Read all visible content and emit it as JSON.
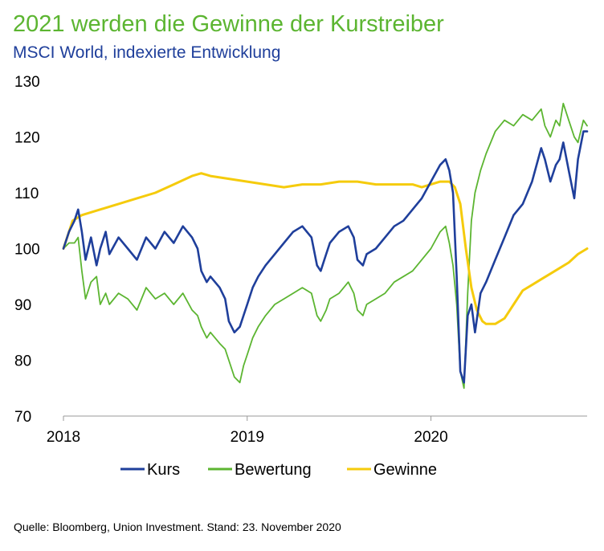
{
  "chart_data": {
    "type": "line",
    "title": "2021 werden die Gewinne der Kurstreiber",
    "subtitle": "MSCI World, indexierte Entwicklung",
    "xlim": [
      2018.0,
      2020.85
    ],
    "ylim": [
      70,
      130
    ],
    "y_ticks": [
      "70",
      "80",
      "90",
      "100",
      "110",
      "120",
      "130"
    ],
    "x_ticks": [
      {
        "x": 2018,
        "label": "2018"
      },
      {
        "x": 2019,
        "label": "2019"
      },
      {
        "x": 2020,
        "label": "2020"
      }
    ],
    "grid": false,
    "legend_position": "bottom",
    "series": [
      {
        "name": "Kurs",
        "color": "#1f3f9b",
        "x": [
          2018.0,
          2018.03,
          2018.06,
          2018.08,
          2018.1,
          2018.12,
          2018.15,
          2018.18,
          2018.2,
          2018.23,
          2018.25,
          2018.3,
          2018.35,
          2018.4,
          2018.45,
          2018.5,
          2018.55,
          2018.6,
          2018.65,
          2018.7,
          2018.73,
          2018.75,
          2018.78,
          2018.8,
          2018.85,
          2018.88,
          2018.9,
          2018.93,
          2018.96,
          2018.98,
          2019.0,
          2019.03,
          2019.06,
          2019.1,
          2019.15,
          2019.2,
          2019.25,
          2019.3,
          2019.35,
          2019.38,
          2019.4,
          2019.43,
          2019.45,
          2019.5,
          2019.55,
          2019.58,
          2019.6,
          2019.63,
          2019.65,
          2019.7,
          2019.75,
          2019.8,
          2019.85,
          2019.9,
          2019.95,
          2020.0,
          2020.05,
          2020.08,
          2020.1,
          2020.12,
          2020.14,
          2020.16,
          2020.18,
          2020.2,
          2020.22,
          2020.24,
          2020.27,
          2020.3,
          2020.35,
          2020.4,
          2020.45,
          2020.5,
          2020.55,
          2020.6,
          2020.62,
          2020.65,
          2020.68,
          2020.7,
          2020.72,
          2020.75,
          2020.78,
          2020.8,
          2020.83,
          2020.85
        ],
        "y": [
          100,
          103,
          105,
          107,
          103,
          98,
          102,
          97,
          100,
          103,
          99,
          102,
          100,
          98,
          102,
          100,
          103,
          101,
          104,
          102,
          100,
          96,
          94,
          95,
          93,
          91,
          87,
          85,
          86,
          88,
          90,
          93,
          95,
          97,
          99,
          101,
          103,
          104,
          102,
          97,
          96,
          99,
          101,
          103,
          104,
          102,
          98,
          97,
          99,
          100,
          102,
          104,
          105,
          107,
          109,
          112,
          115,
          116,
          114,
          110,
          95,
          78,
          76,
          88,
          90,
          85,
          92,
          94,
          98,
          102,
          106,
          108,
          112,
          118,
          116,
          112,
          115,
          116,
          119,
          114,
          109,
          116,
          121,
          121
        ]
      },
      {
        "name": "Bewertung",
        "color": "#5cb531",
        "x": [
          2018.0,
          2018.03,
          2018.06,
          2018.08,
          2018.1,
          2018.12,
          2018.15,
          2018.18,
          2018.2,
          2018.23,
          2018.25,
          2018.3,
          2018.35,
          2018.4,
          2018.45,
          2018.5,
          2018.55,
          2018.6,
          2018.65,
          2018.7,
          2018.73,
          2018.75,
          2018.78,
          2018.8,
          2018.85,
          2018.88,
          2018.9,
          2018.93,
          2018.96,
          2018.98,
          2019.0,
          2019.03,
          2019.06,
          2019.1,
          2019.15,
          2019.2,
          2019.25,
          2019.3,
          2019.35,
          2019.38,
          2019.4,
          2019.43,
          2019.45,
          2019.5,
          2019.55,
          2019.58,
          2019.6,
          2019.63,
          2019.65,
          2019.7,
          2019.75,
          2019.8,
          2019.85,
          2019.9,
          2019.95,
          2020.0,
          2020.05,
          2020.08,
          2020.1,
          2020.12,
          2020.14,
          2020.16,
          2020.18,
          2020.2,
          2020.22,
          2020.24,
          2020.27,
          2020.3,
          2020.35,
          2020.4,
          2020.45,
          2020.5,
          2020.55,
          2020.6,
          2020.62,
          2020.65,
          2020.68,
          2020.7,
          2020.72,
          2020.75,
          2020.78,
          2020.8,
          2020.83,
          2020.85
        ],
        "y": [
          100,
          101,
          101,
          102,
          96,
          91,
          94,
          95,
          90,
          92,
          90,
          92,
          91,
          89,
          93,
          91,
          92,
          90,
          92,
          89,
          88,
          86,
          84,
          85,
          83,
          82,
          80,
          77,
          76,
          79,
          81,
          84,
          86,
          88,
          90,
          91,
          92,
          93,
          92,
          88,
          87,
          89,
          91,
          92,
          94,
          92,
          89,
          88,
          90,
          91,
          92,
          94,
          95,
          96,
          98,
          100,
          103,
          104,
          101,
          97,
          90,
          78,
          75,
          92,
          105,
          110,
          114,
          117,
          121,
          123,
          122,
          124,
          123,
          125,
          122,
          120,
          123,
          122,
          126,
          123,
          120,
          119,
          123,
          122
        ]
      },
      {
        "name": "Gewinne",
        "color": "#f5cb0c",
        "x": [
          2018.0,
          2018.05,
          2018.1,
          2018.2,
          2018.3,
          2018.4,
          2018.5,
          2018.6,
          2018.7,
          2018.75,
          2018.8,
          2018.9,
          2019.0,
          2019.1,
          2019.2,
          2019.3,
          2019.4,
          2019.5,
          2019.6,
          2019.7,
          2019.8,
          2019.9,
          2019.95,
          2020.0,
          2020.05,
          2020.1,
          2020.13,
          2020.16,
          2020.19,
          2020.22,
          2020.25,
          2020.28,
          2020.3,
          2020.35,
          2020.4,
          2020.45,
          2020.5,
          2020.55,
          2020.6,
          2020.65,
          2020.7,
          2020.75,
          2020.8,
          2020.85
        ],
        "y": [
          100,
          105,
          106,
          107,
          108,
          109,
          110,
          111.5,
          113,
          113.5,
          113,
          112.5,
          112,
          111.5,
          111,
          111.5,
          111.5,
          112,
          112,
          111.5,
          111.5,
          111.5,
          111,
          111.5,
          112,
          112,
          111,
          108,
          100,
          93,
          89,
          87,
          86.5,
          86.5,
          87.5,
          90,
          92.5,
          93.5,
          94.5,
          95.5,
          96.5,
          97.5,
          99,
          100
        ]
      }
    ]
  },
  "footer": {
    "source": "Quelle: Bloomberg, Union Investment. Stand: 23. November 2020"
  }
}
